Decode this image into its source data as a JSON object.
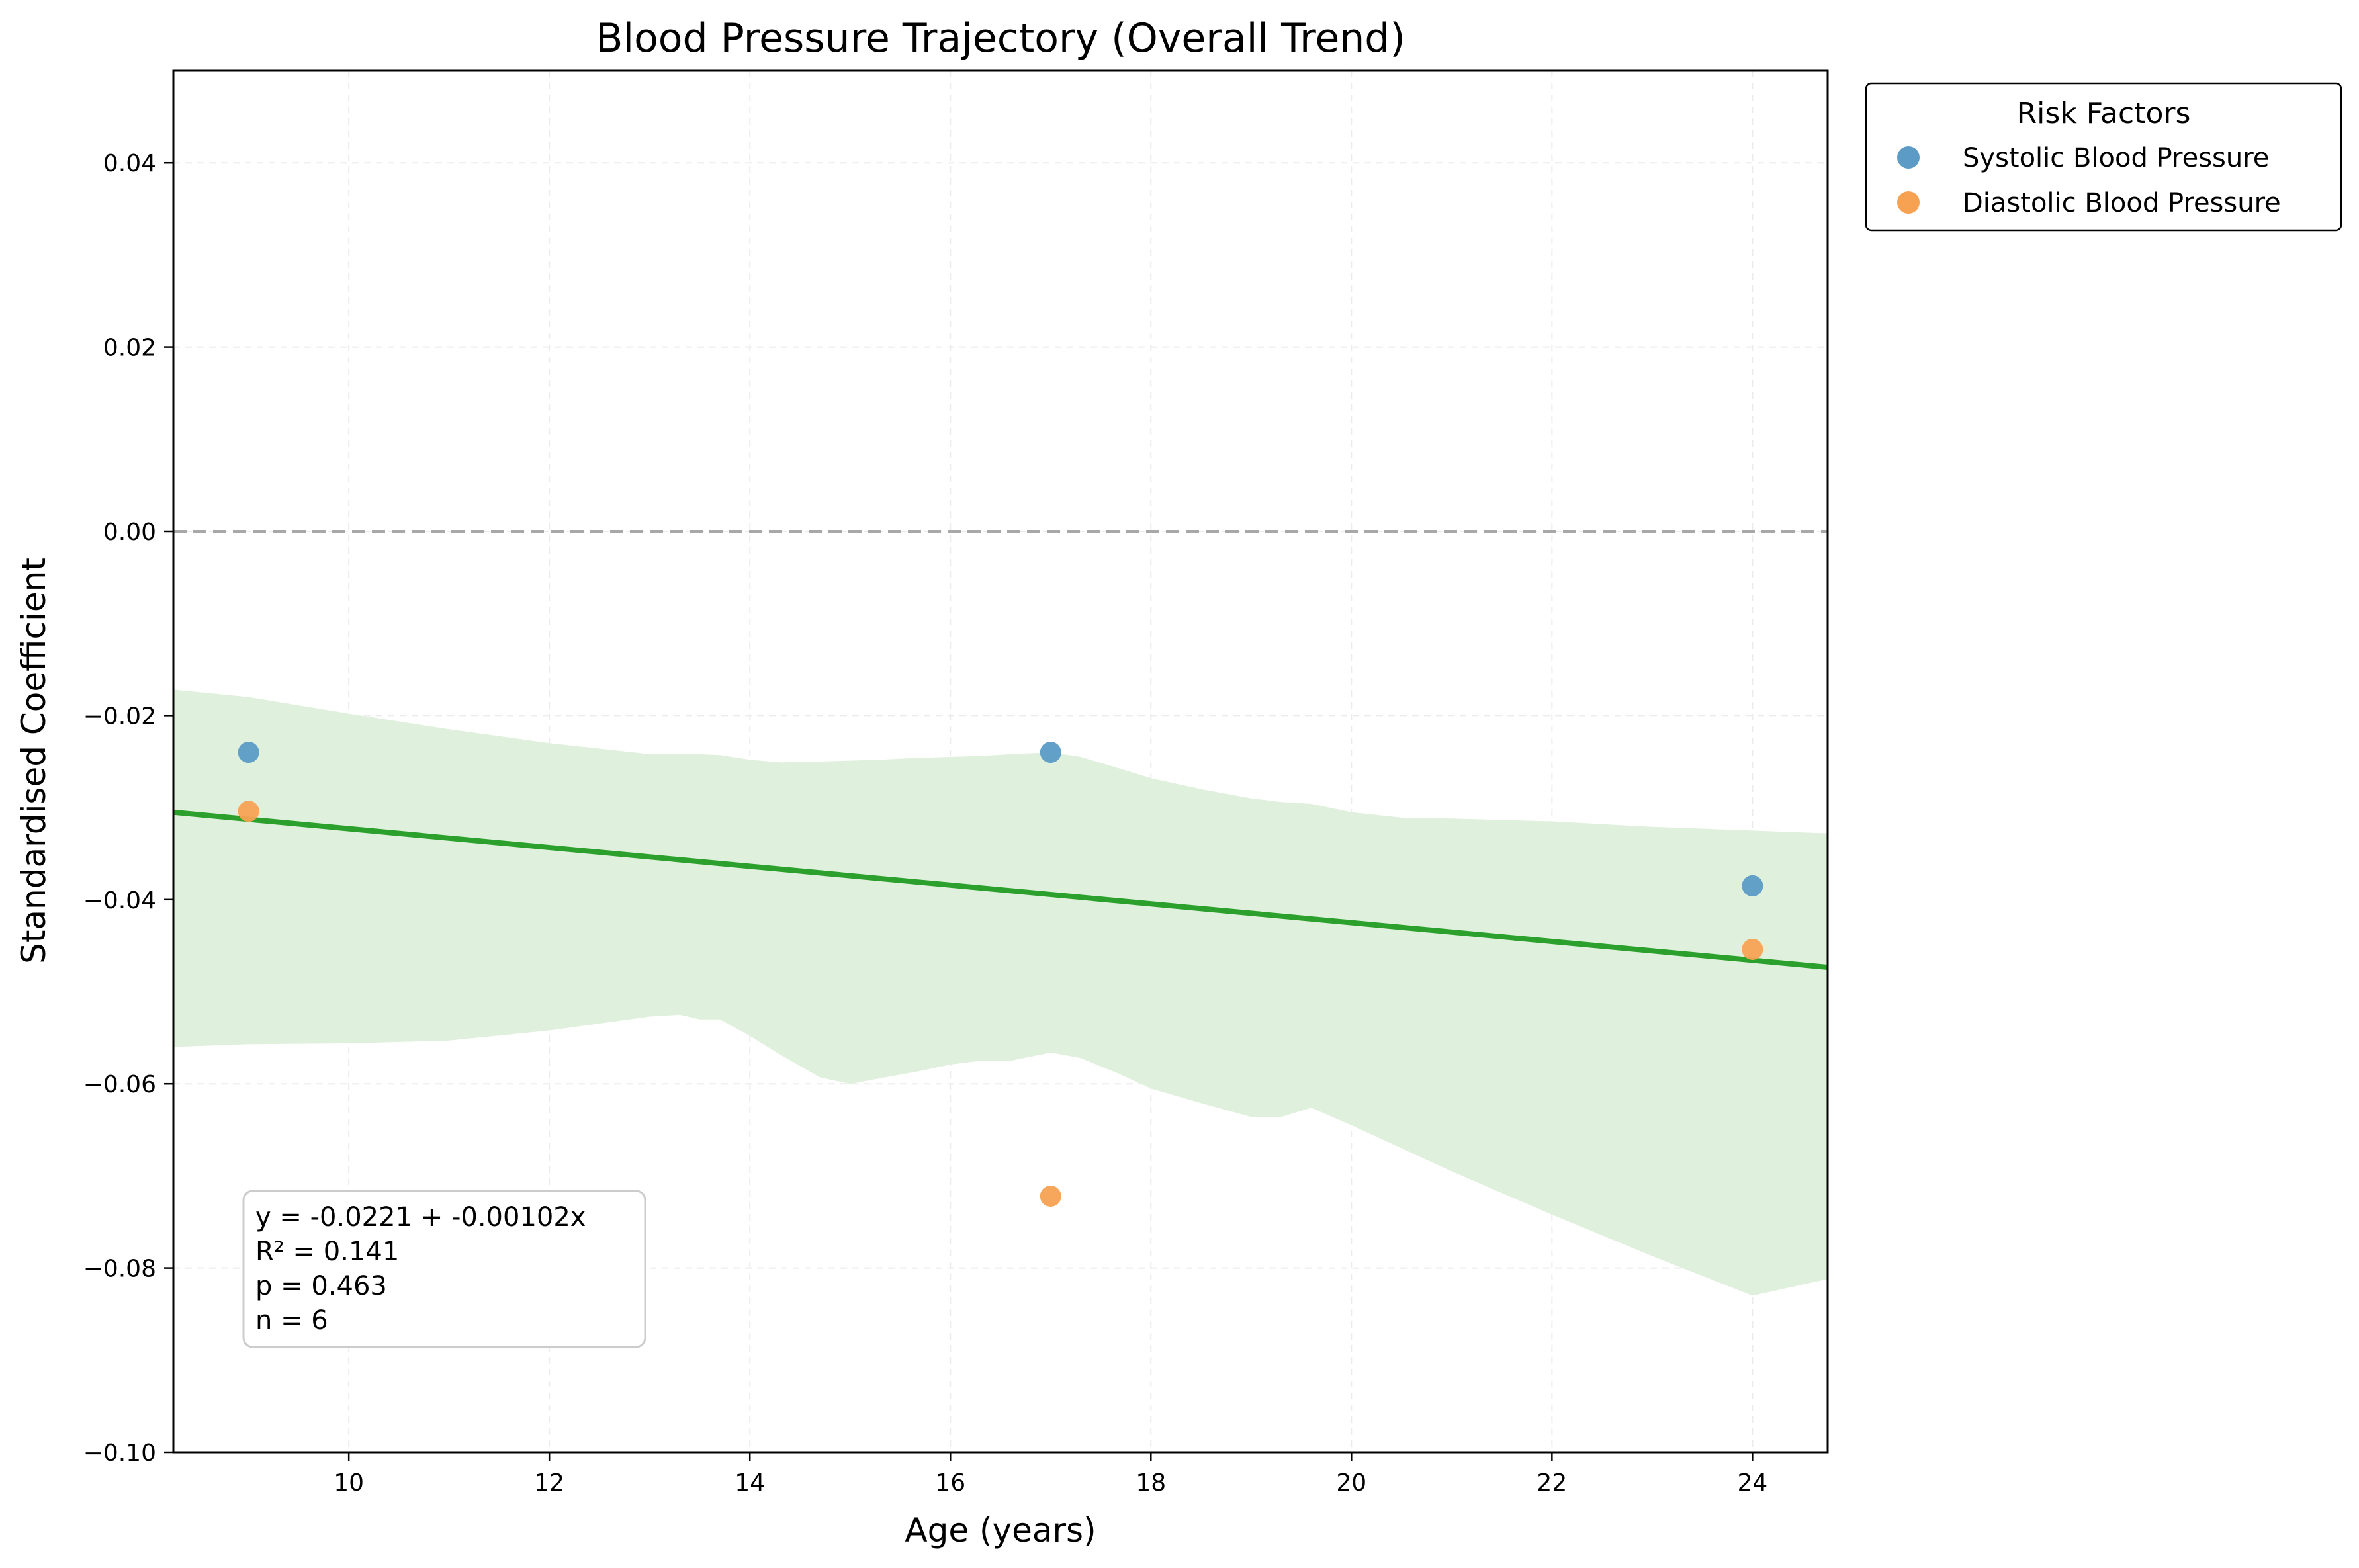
{
  "chart_data": {
    "type": "scatter",
    "title": "Blood Pressure Trajectory (Overall Trend)",
    "xlabel": "Age (years)",
    "ylabel": "Standardised Coefficient",
    "xlim": [
      8.25,
      24.75
    ],
    "ylim": [
      -0.1,
      0.05
    ],
    "x_ticks": [
      10,
      12,
      14,
      16,
      18,
      20,
      22,
      24
    ],
    "x_tick_labels": [
      "10",
      "12",
      "14",
      "16",
      "18",
      "20",
      "22",
      "24"
    ],
    "y_ticks": [
      -0.1,
      -0.08,
      -0.06,
      -0.04,
      -0.02,
      0.0,
      0.02,
      0.04
    ],
    "y_tick_labels": [
      "−0.10",
      "−0.08",
      "−0.06",
      "−0.04",
      "−0.02",
      "0.00",
      "0.02",
      "0.04"
    ],
    "grid": true,
    "reference_line_y": 0.0,
    "legend": {
      "title": "Risk Factors",
      "placement": "outside-top-right"
    },
    "series": [
      {
        "name": "Systolic Blood Pressure",
        "color": "#5b9bc6",
        "points": [
          {
            "x": 9,
            "y": -0.024
          },
          {
            "x": 17,
            "y": -0.024
          },
          {
            "x": 24,
            "y": -0.0385
          }
        ]
      },
      {
        "name": "Diastolic Blood Pressure",
        "color": "#f7a253",
        "points": [
          {
            "x": 9,
            "y": -0.0304
          },
          {
            "x": 17,
            "y": -0.0722
          },
          {
            "x": 24,
            "y": -0.0454
          }
        ]
      }
    ],
    "trend": {
      "intercept": -0.0221,
      "slope": -0.00102,
      "color": "#2ca02c"
    },
    "confidence_band": {
      "color": "#dff0dc",
      "x": [
        8.25,
        9.0,
        10.0,
        11.0,
        12.0,
        13.0,
        13.3,
        13.5,
        13.7,
        14.0,
        14.3,
        14.7,
        15.0,
        15.3,
        15.7,
        16.0,
        16.3,
        16.6,
        17.0,
        17.3,
        17.7,
        18.0,
        18.5,
        19.0,
        19.3,
        19.6,
        20.0,
        20.5,
        21.0,
        22.0,
        23.0,
        24.0,
        24.75
      ],
      "upper": [
        -0.0172,
        -0.018,
        -0.0198,
        -0.0215,
        -0.023,
        -0.0242,
        -0.0242,
        -0.0242,
        -0.0243,
        -0.0248,
        -0.0251,
        -0.025,
        -0.0249,
        -0.0248,
        -0.0246,
        -0.0245,
        -0.0244,
        -0.0242,
        -0.024,
        -0.0245,
        -0.0258,
        -0.0268,
        -0.028,
        -0.029,
        -0.0294,
        -0.0296,
        -0.0305,
        -0.0311,
        -0.0312,
        -0.0315,
        -0.0321,
        -0.0325,
        -0.0328
      ],
      "lower": [
        -0.056,
        -0.0557,
        -0.0556,
        -0.0553,
        -0.0542,
        -0.0527,
        -0.0525,
        -0.053,
        -0.053,
        -0.0548,
        -0.0568,
        -0.0593,
        -0.06,
        -0.0594,
        -0.0586,
        -0.0579,
        -0.0575,
        -0.0575,
        -0.0566,
        -0.0572,
        -0.059,
        -0.0605,
        -0.0621,
        -0.0636,
        -0.0636,
        -0.0626,
        -0.0645,
        -0.067,
        -0.0695,
        -0.0742,
        -0.0787,
        -0.083,
        -0.0812
      ]
    },
    "stats_box": {
      "lines": [
        "y = -0.0221 + -0.00102x",
        "R² = 0.141",
        "p = 0.463",
        "n = 6"
      ]
    }
  }
}
